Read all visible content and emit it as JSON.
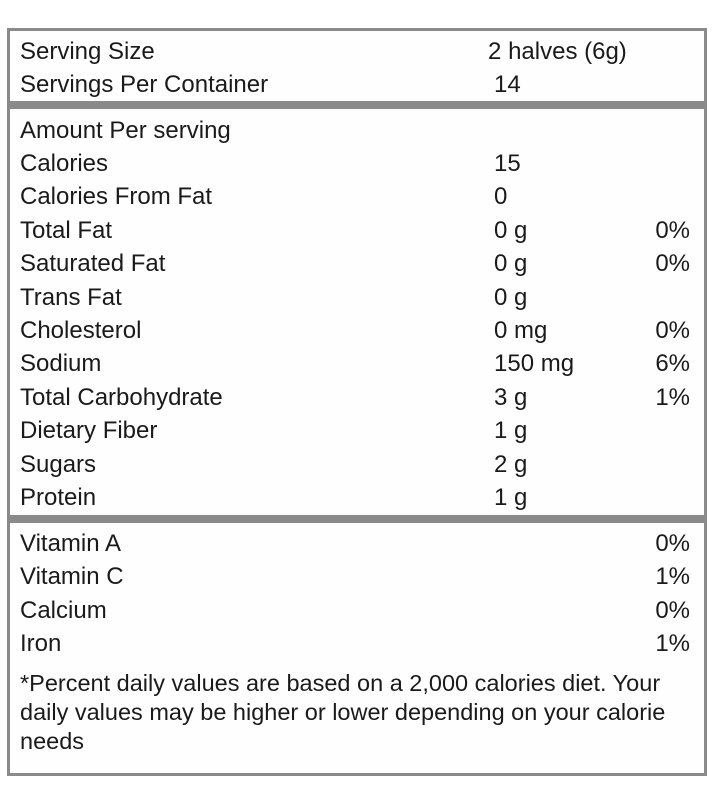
{
  "label": {
    "serving_info": {
      "rows": [
        {
          "name": "Serving Size",
          "value": "2 halves (6g)",
          "pct": ""
        },
        {
          "name": "Servings Per Container",
          "value": "14",
          "pct": ""
        }
      ]
    },
    "nutrients": {
      "header": "Amount Per serving",
      "rows": [
        {
          "name": "Calories",
          "value": "15",
          "pct": ""
        },
        {
          "name": "Calories From Fat",
          "value": "0",
          "pct": ""
        },
        {
          "name": "Total Fat",
          "value": "0 g",
          "pct": "0%"
        },
        {
          "name": "Saturated Fat",
          "value": "0 g",
          "pct": "0%"
        },
        {
          "name": "Trans Fat",
          "value": "0 g",
          "pct": ""
        },
        {
          "name": "Cholesterol",
          "value": "0 mg",
          "pct": "0%"
        },
        {
          "name": "Sodium",
          "value": "150 mg",
          "pct": "6%"
        },
        {
          "name": "Total Carbohydrate",
          "value": "3 g",
          "pct": "1%"
        },
        {
          "name": "Dietary Fiber",
          "value": "1 g",
          "pct": ""
        },
        {
          "name": "Sugars",
          "value": "2 g",
          "pct": ""
        },
        {
          "name": "Protein",
          "value": "1 g",
          "pct": ""
        }
      ]
    },
    "vitamins": {
      "rows": [
        {
          "name": "Vitamin A",
          "pct": "0%"
        },
        {
          "name": "Vitamin C",
          "pct": "1%"
        },
        {
          "name": "Calcium",
          "pct": "0%"
        },
        {
          "name": "Iron",
          "pct": "1%"
        }
      ]
    },
    "footnote": "*Percent daily values are based on a 2,000 calories diet. Your daily values may be higher or lower depending on your calorie needs"
  },
  "colors": {
    "border": "#8a8a8a",
    "text": "#1a1a1a",
    "background": "#ffffff"
  }
}
